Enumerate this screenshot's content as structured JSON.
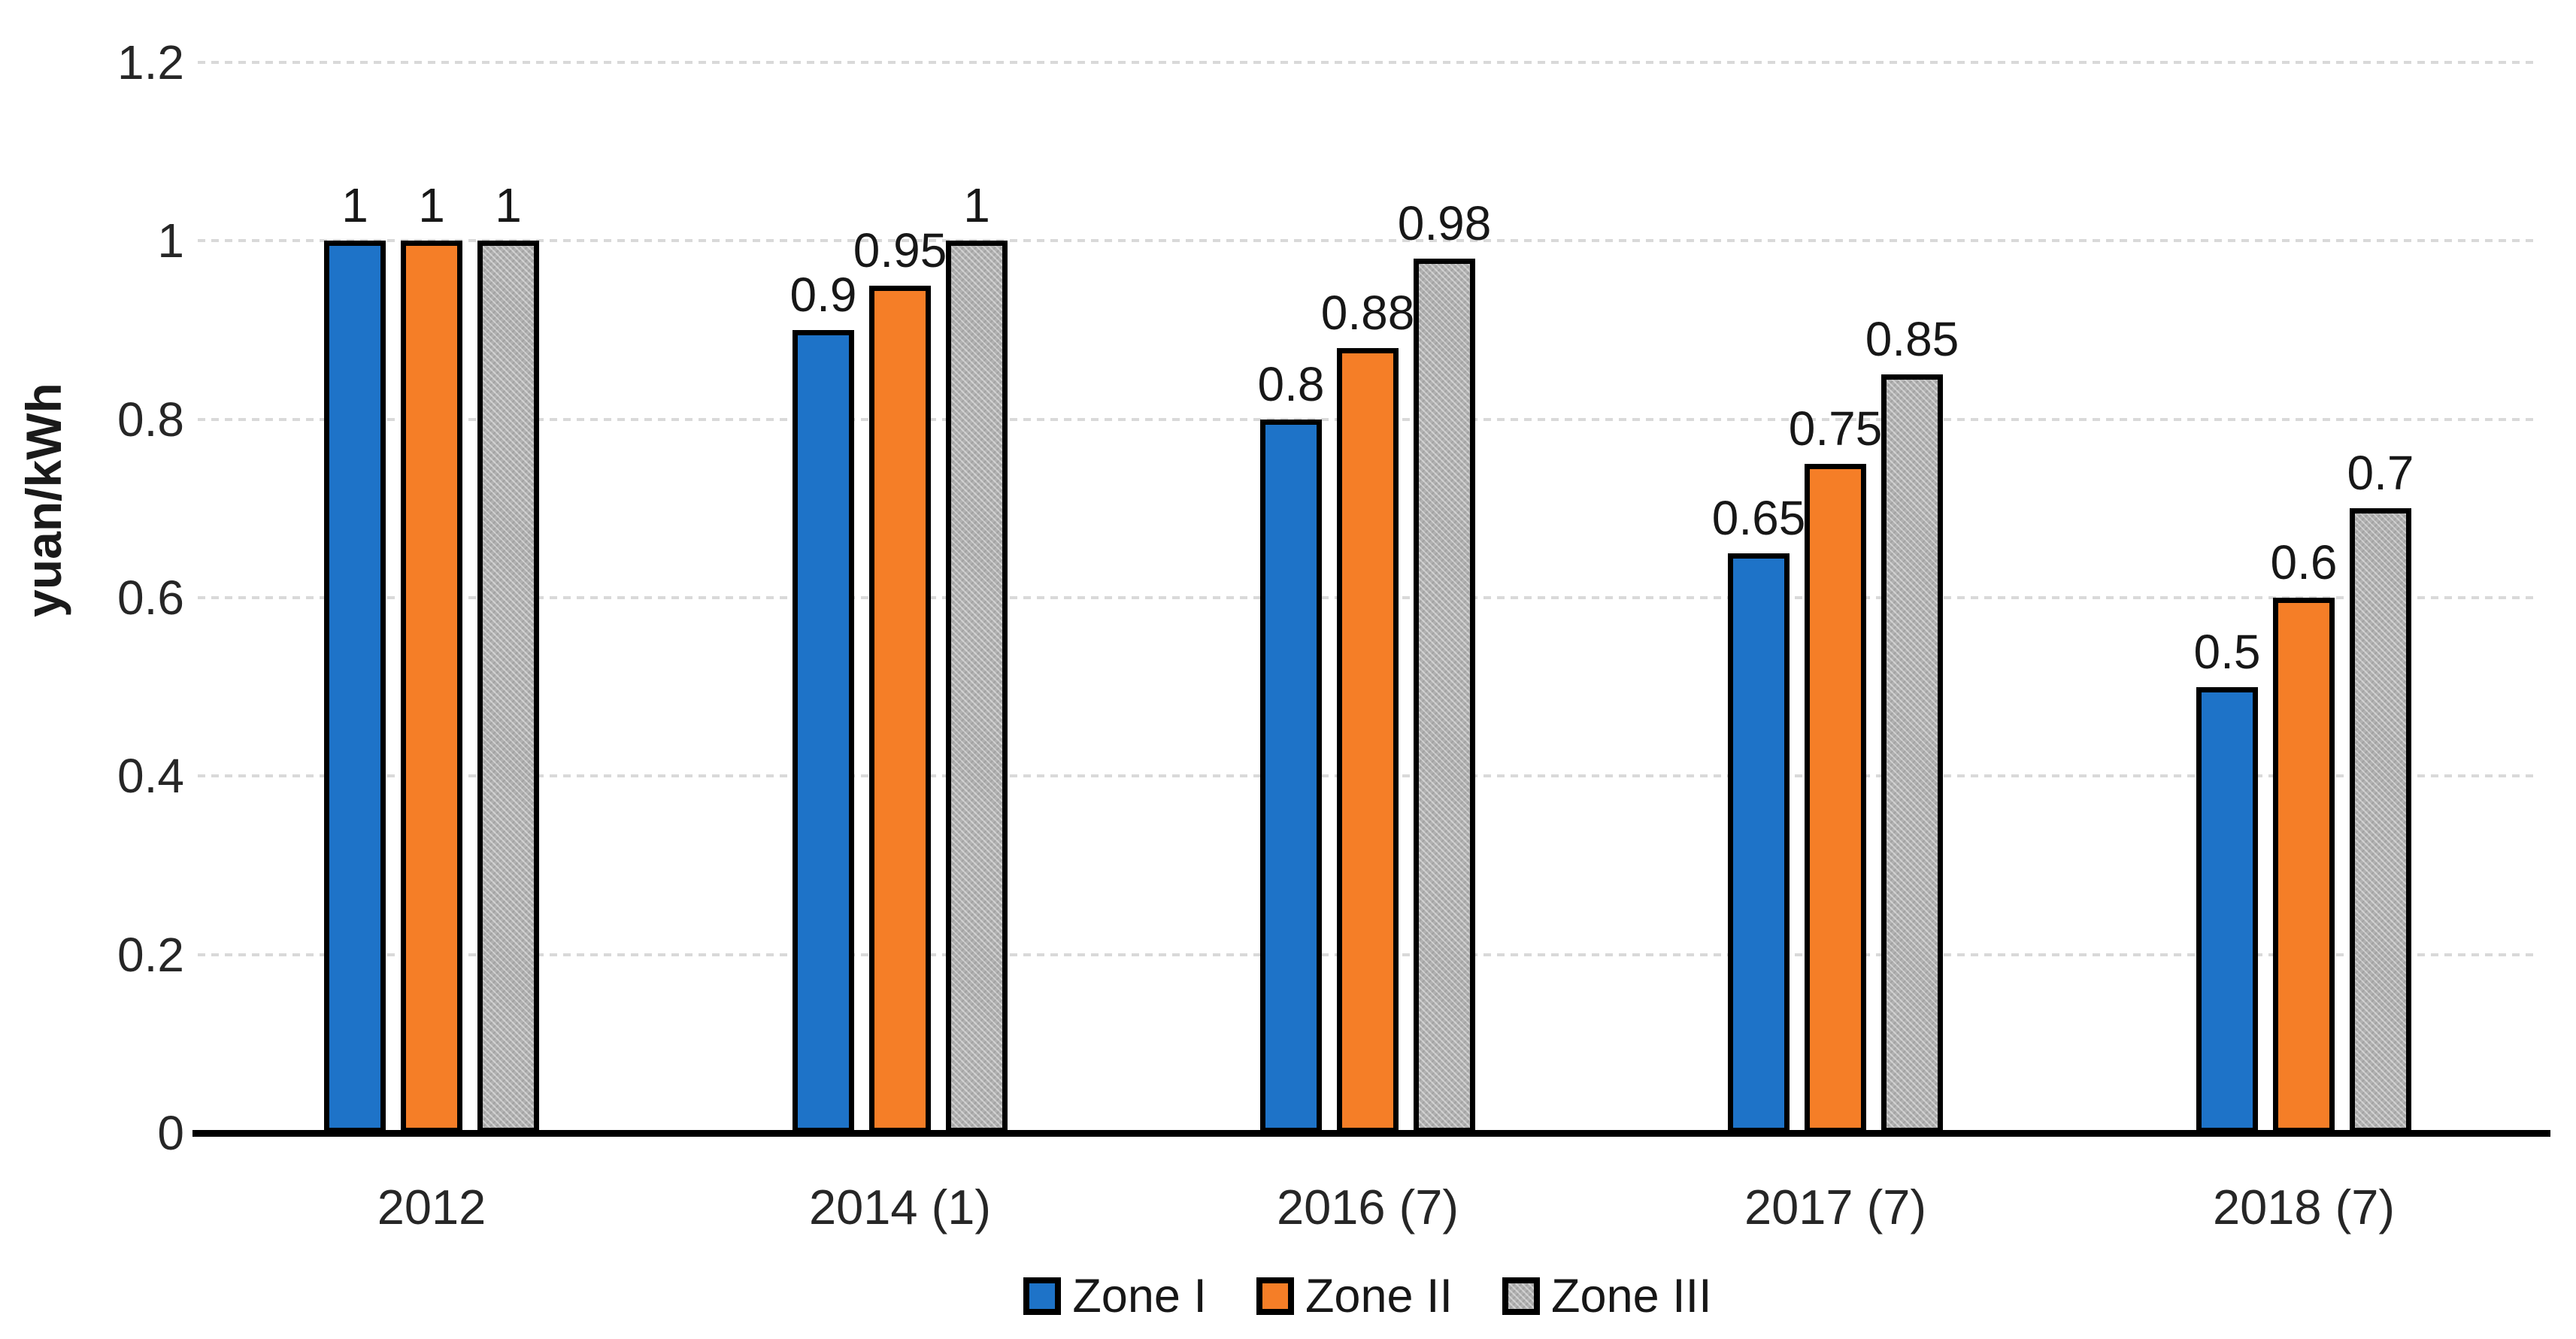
{
  "chart_data": {
    "type": "bar",
    "title": "",
    "xlabel": "",
    "ylabel": "yuan/kWh",
    "categories": [
      "2012",
      "2014 (1)",
      "2016 (7)",
      "2017 (7)",
      "2018 (7)"
    ],
    "series": [
      {
        "name": "Zone I",
        "color": "#1e73c8",
        "pattern": false,
        "values": [
          1,
          0.9,
          0.8,
          0.65,
          0.5
        ]
      },
      {
        "name": "Zone II",
        "color": "#f57e27",
        "pattern": false,
        "values": [
          1,
          0.95,
          0.88,
          0.75,
          0.6
        ]
      },
      {
        "name": "Zone III",
        "color": "#b1b1b1",
        "pattern": true,
        "values": [
          1,
          1,
          0.98,
          0.85,
          0.7
        ]
      }
    ],
    "data_labels": [
      "1",
      "0.9",
      "0.8",
      "0.65",
      "0.5",
      "1",
      "0.95",
      "0.88",
      "0.75",
      "0.6",
      "1",
      "1",
      "0.98",
      "0.85",
      "0.7"
    ],
    "ylim": [
      0,
      1.2
    ],
    "ytick_labels": [
      "0",
      "0.2",
      "0.4",
      "0.6",
      "0.8",
      "1",
      "1.2"
    ],
    "yticks": [
      0,
      0.2,
      0.4,
      0.6,
      0.8,
      1,
      1.2
    ],
    "grid": true,
    "gridline_color": "#d9d9d9",
    "bar_border_color": "#000000",
    "legend_position": "bottom"
  }
}
